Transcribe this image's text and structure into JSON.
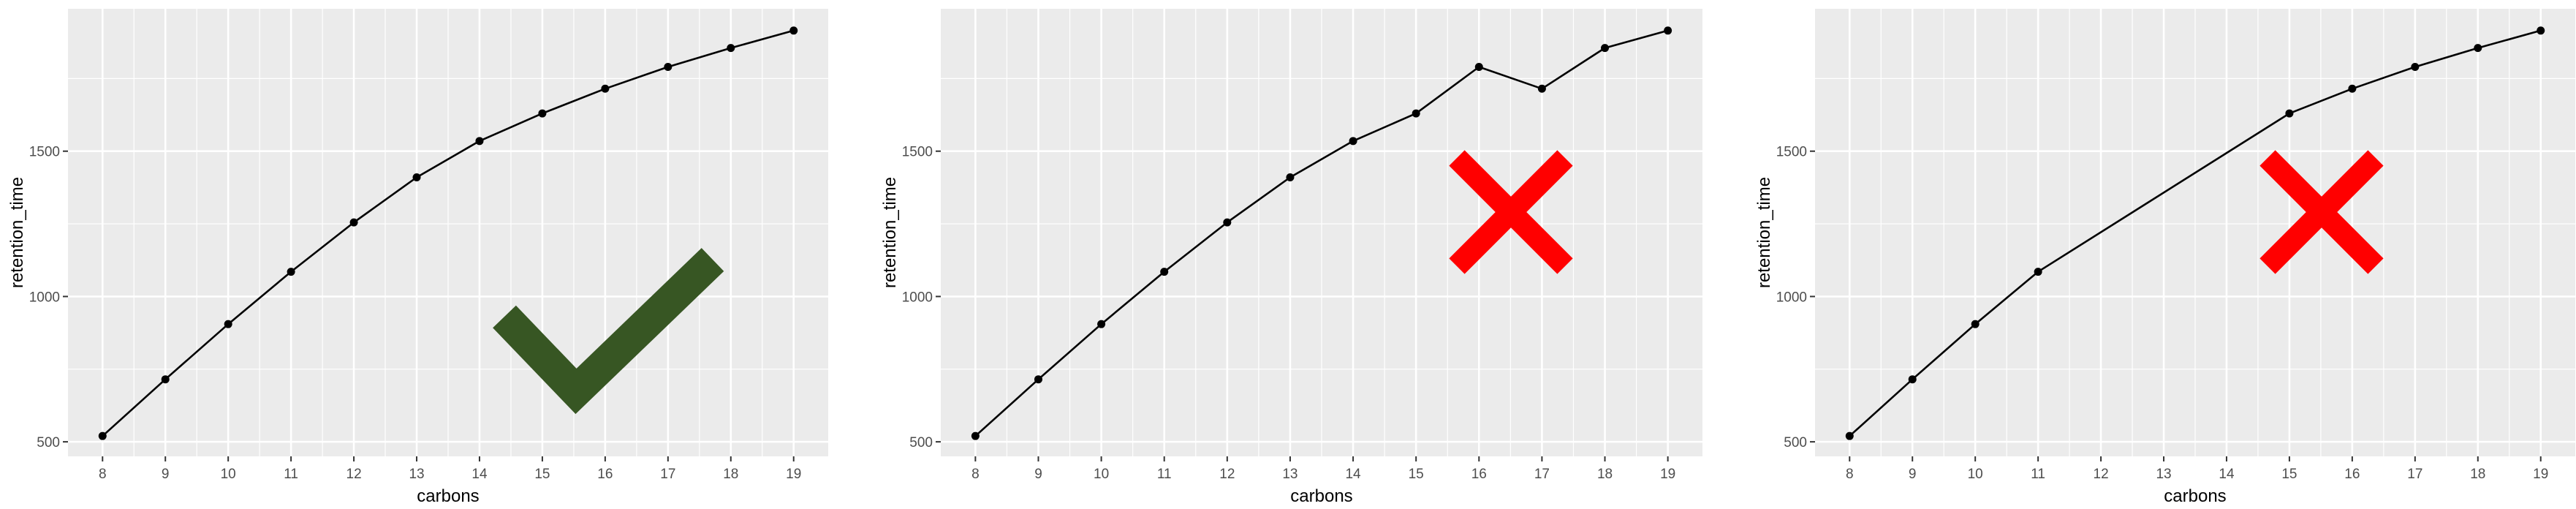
{
  "chart_data": [
    {
      "type": "line",
      "xlabel": "carbons",
      "ylabel": "retention_time",
      "x": [
        8,
        9,
        10,
        11,
        12,
        13,
        14,
        15,
        16,
        17,
        18,
        19
      ],
      "y": [
        520,
        715,
        905,
        1085,
        1255,
        1410,
        1535,
        1630,
        1715,
        1790,
        1855,
        1915
      ],
      "xticks": [
        "8",
        "9",
        "10",
        "11",
        "12",
        "13",
        "14",
        "15",
        "16",
        "17",
        "18",
        "19"
      ],
      "yticks": [
        "500",
        "1000",
        "1500"
      ],
      "xlim": [
        7.45,
        19.55
      ],
      "ylim": [
        450,
        1990
      ],
      "grid": true,
      "mark": "check-mark",
      "mark_color": "#375623"
    },
    {
      "type": "line",
      "xlabel": "carbons",
      "ylabel": "retention_time",
      "x": [
        8,
        9,
        10,
        11,
        12,
        13,
        14,
        15,
        16,
        17,
        18,
        19
      ],
      "y": [
        520,
        715,
        905,
        1085,
        1255,
        1410,
        1535,
        1630,
        1790,
        1715,
        1855,
        1915
      ],
      "xticks": [
        "8",
        "9",
        "10",
        "11",
        "12",
        "13",
        "14",
        "15",
        "16",
        "17",
        "18",
        "19"
      ],
      "yticks": [
        "500",
        "1000",
        "1500"
      ],
      "xlim": [
        7.45,
        19.55
      ],
      "ylim": [
        450,
        1990
      ],
      "grid": true,
      "mark": "cross-mark",
      "mark_color": "#ff0000"
    },
    {
      "type": "line",
      "xlabel": "carbons",
      "ylabel": "retention_time",
      "x": [
        8,
        9,
        10,
        11,
        15,
        16,
        17,
        18,
        19
      ],
      "y": [
        520,
        715,
        905,
        1085,
        1630,
        1715,
        1790,
        1855,
        1915
      ],
      "xticks": [
        "8",
        "9",
        "10",
        "11",
        "12",
        "13",
        "14",
        "15",
        "16",
        "17",
        "18",
        "19"
      ],
      "yticks": [
        "500",
        "1000",
        "1500"
      ],
      "xlim": [
        7.45,
        19.55
      ],
      "ylim": [
        450,
        1990
      ],
      "grid": true,
      "mark": "cross-mark",
      "mark_color": "#ff0000"
    }
  ],
  "theme": {
    "panel_background": "#ebebeb",
    "grid_color": "#ffffff",
    "line_color": "#000000",
    "point_color": "#000000",
    "tick_text_color": "#4d4d4d",
    "axis_title_color": "#000000"
  }
}
